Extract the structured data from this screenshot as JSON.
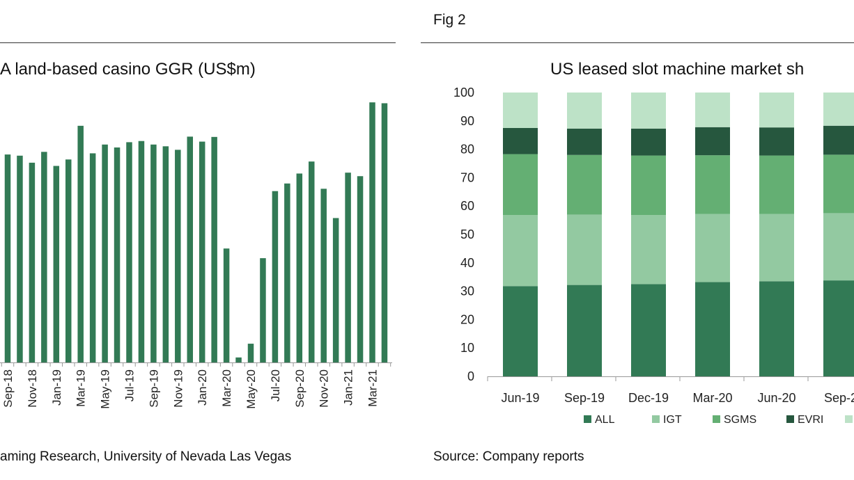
{
  "fig2_label": "Fig 2",
  "left": {
    "title": "A land-based casino GGR (US$m)",
    "source": "aming Research, University of Nevada Las Vegas"
  },
  "right": {
    "title": "US leased slot machine market sh",
    "source": "Source: Company reports"
  },
  "chart_data": [
    {
      "type": "bar",
      "title": "A land-based casino GGR (US$m)",
      "color": "#327a55",
      "tick_labels": [
        "Sep-18",
        "Nov-18",
        "Jan-19",
        "Mar-19",
        "May-19",
        "Jul-19",
        "Sep-19",
        "Nov-19",
        "Jan-20",
        "Mar-20",
        "May-20",
        "Jul-20",
        "Sep-20",
        "Nov-20",
        "Jan-21",
        "Mar-21"
      ],
      "bars": [
        {
          "label": "Sep-18",
          "value": 710
        },
        {
          "label": "Oct-18",
          "value": 706
        },
        {
          "label": "Nov-18",
          "value": 682
        },
        {
          "label": "Dec-18",
          "value": 719
        },
        {
          "label": "Jan-19",
          "value": 671
        },
        {
          "label": "Feb-19",
          "value": 693
        },
        {
          "label": "Mar-19",
          "value": 808
        },
        {
          "label": "Apr-19",
          "value": 714
        },
        {
          "label": "May-19",
          "value": 744
        },
        {
          "label": "Jun-19",
          "value": 734
        },
        {
          "label": "Jul-19",
          "value": 752
        },
        {
          "label": "Aug-19",
          "value": 756
        },
        {
          "label": "Sep-19",
          "value": 744
        },
        {
          "label": "Oct-19",
          "value": 738
        },
        {
          "label": "Nov-19",
          "value": 726
        },
        {
          "label": "Dec-19",
          "value": 771
        },
        {
          "label": "Jan-20",
          "value": 754
        },
        {
          "label": "Feb-20",
          "value": 770
        },
        {
          "label": "Mar-20",
          "value": 389
        },
        {
          "label": "Apr-20",
          "value": 17
        },
        {
          "label": "May-20",
          "value": 64
        },
        {
          "label": "Jun-20",
          "value": 356
        },
        {
          "label": "Jul-20",
          "value": 585
        },
        {
          "label": "Aug-20",
          "value": 611
        },
        {
          "label": "Sep-20",
          "value": 645
        },
        {
          "label": "Oct-20",
          "value": 686
        },
        {
          "label": "Nov-20",
          "value": 593
        },
        {
          "label": "Dec-20",
          "value": 493
        },
        {
          "label": "Jan-21",
          "value": 648
        },
        {
          "label": "Feb-21",
          "value": 636
        },
        {
          "label": "Mar-21",
          "value": 888
        },
        {
          "label": "Apr-21",
          "value": 885
        }
      ],
      "ylim": [
        0,
        1000
      ]
    },
    {
      "type": "bar",
      "stacked": true,
      "title": "US leased slot machine market sh",
      "categories": [
        "Jun-19",
        "Sep-19",
        "Dec-19",
        "Mar-20",
        "Jun-20",
        "Sep-2"
      ],
      "ylim": [
        0,
        100
      ],
      "yticks": [
        0,
        10,
        20,
        30,
        40,
        50,
        60,
        70,
        80,
        90,
        100
      ],
      "legend_position": "bottom",
      "series": [
        {
          "name": "ALL",
          "color": "#327a55",
          "values": [
            31.8,
            32.2,
            32.5,
            33.2,
            33.5,
            33.8
          ]
        },
        {
          "name": "IGT",
          "color": "#93c9a1",
          "values": [
            25.0,
            24.8,
            24.3,
            24.0,
            23.7,
            23.7
          ]
        },
        {
          "name": "SGMS",
          "color": "#64af73",
          "values": [
            21.5,
            21.0,
            21.0,
            20.7,
            20.6,
            20.6
          ]
        },
        {
          "name": "EVRI",
          "color": "#26573e",
          "values": [
            9.2,
            9.3,
            9.5,
            9.9,
            9.9,
            10.2
          ]
        },
        {
          "name": "",
          "color": "#bde2c7",
          "values": [
            12.5,
            12.7,
            12.7,
            12.2,
            12.3,
            11.7
          ]
        }
      ]
    }
  ]
}
